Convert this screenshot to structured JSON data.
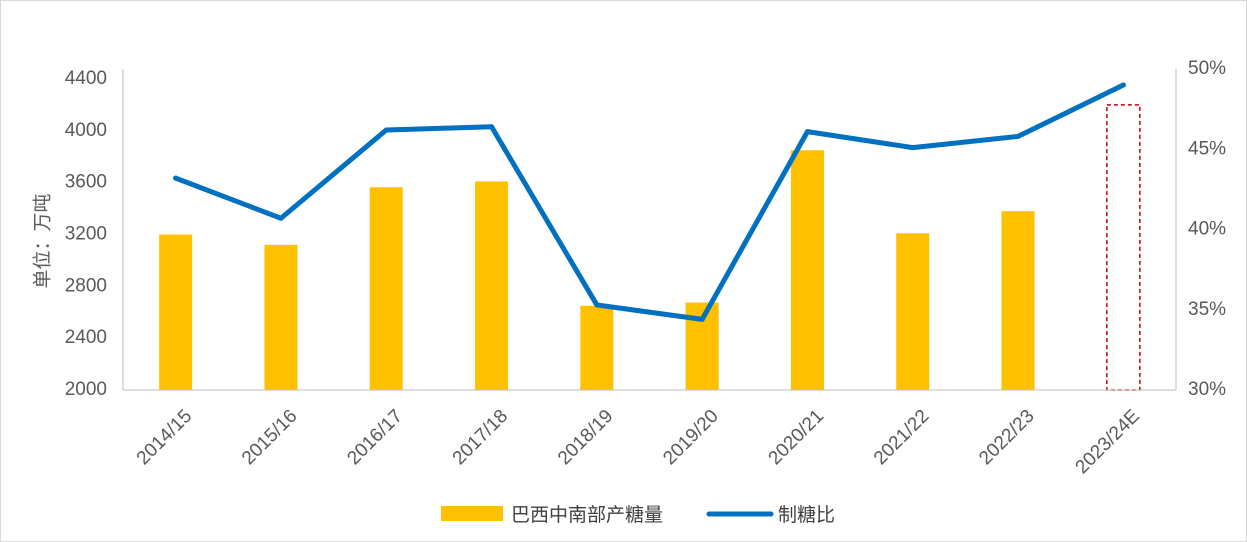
{
  "chart_data": {
    "type": "bar+line",
    "categories": [
      "2014/15",
      "2015/16",
      "2016/17",
      "2017/18",
      "2018/19",
      "2019/20",
      "2020/21",
      "2021/22",
      "2022/23",
      "2023/24E"
    ],
    "bar_series": {
      "name": "巴西中南部产糖量",
      "color": "#FFC000",
      "values": [
        3200,
        3120,
        3565,
        3610,
        2650,
        2675,
        3850,
        3210,
        3380,
        null
      ],
      "axis": "left"
    },
    "line_series": {
      "name": "制糖比",
      "color": "#0070C0",
      "values": [
        43.2,
        40.7,
        46.2,
        46.4,
        35.3,
        34.4,
        46.1,
        45.1,
        45.8,
        49.0
      ],
      "axis": "right"
    },
    "estimate_box": {
      "category": "2023/24E",
      "value": 4200,
      "color": "#C00000"
    },
    "ylabel": "单位：万吨",
    "y_left": {
      "min": 2000,
      "max": 4400,
      "ticks": [
        "2000",
        "2400",
        "2800",
        "3200",
        "3600",
        "4000",
        "4400"
      ]
    },
    "y_right": {
      "min": 30,
      "max": 50,
      "ticks": [
        "30%",
        "35%",
        "40%",
        "45%",
        "50%"
      ]
    },
    "legend_position": "bottom",
    "grid": false
  }
}
